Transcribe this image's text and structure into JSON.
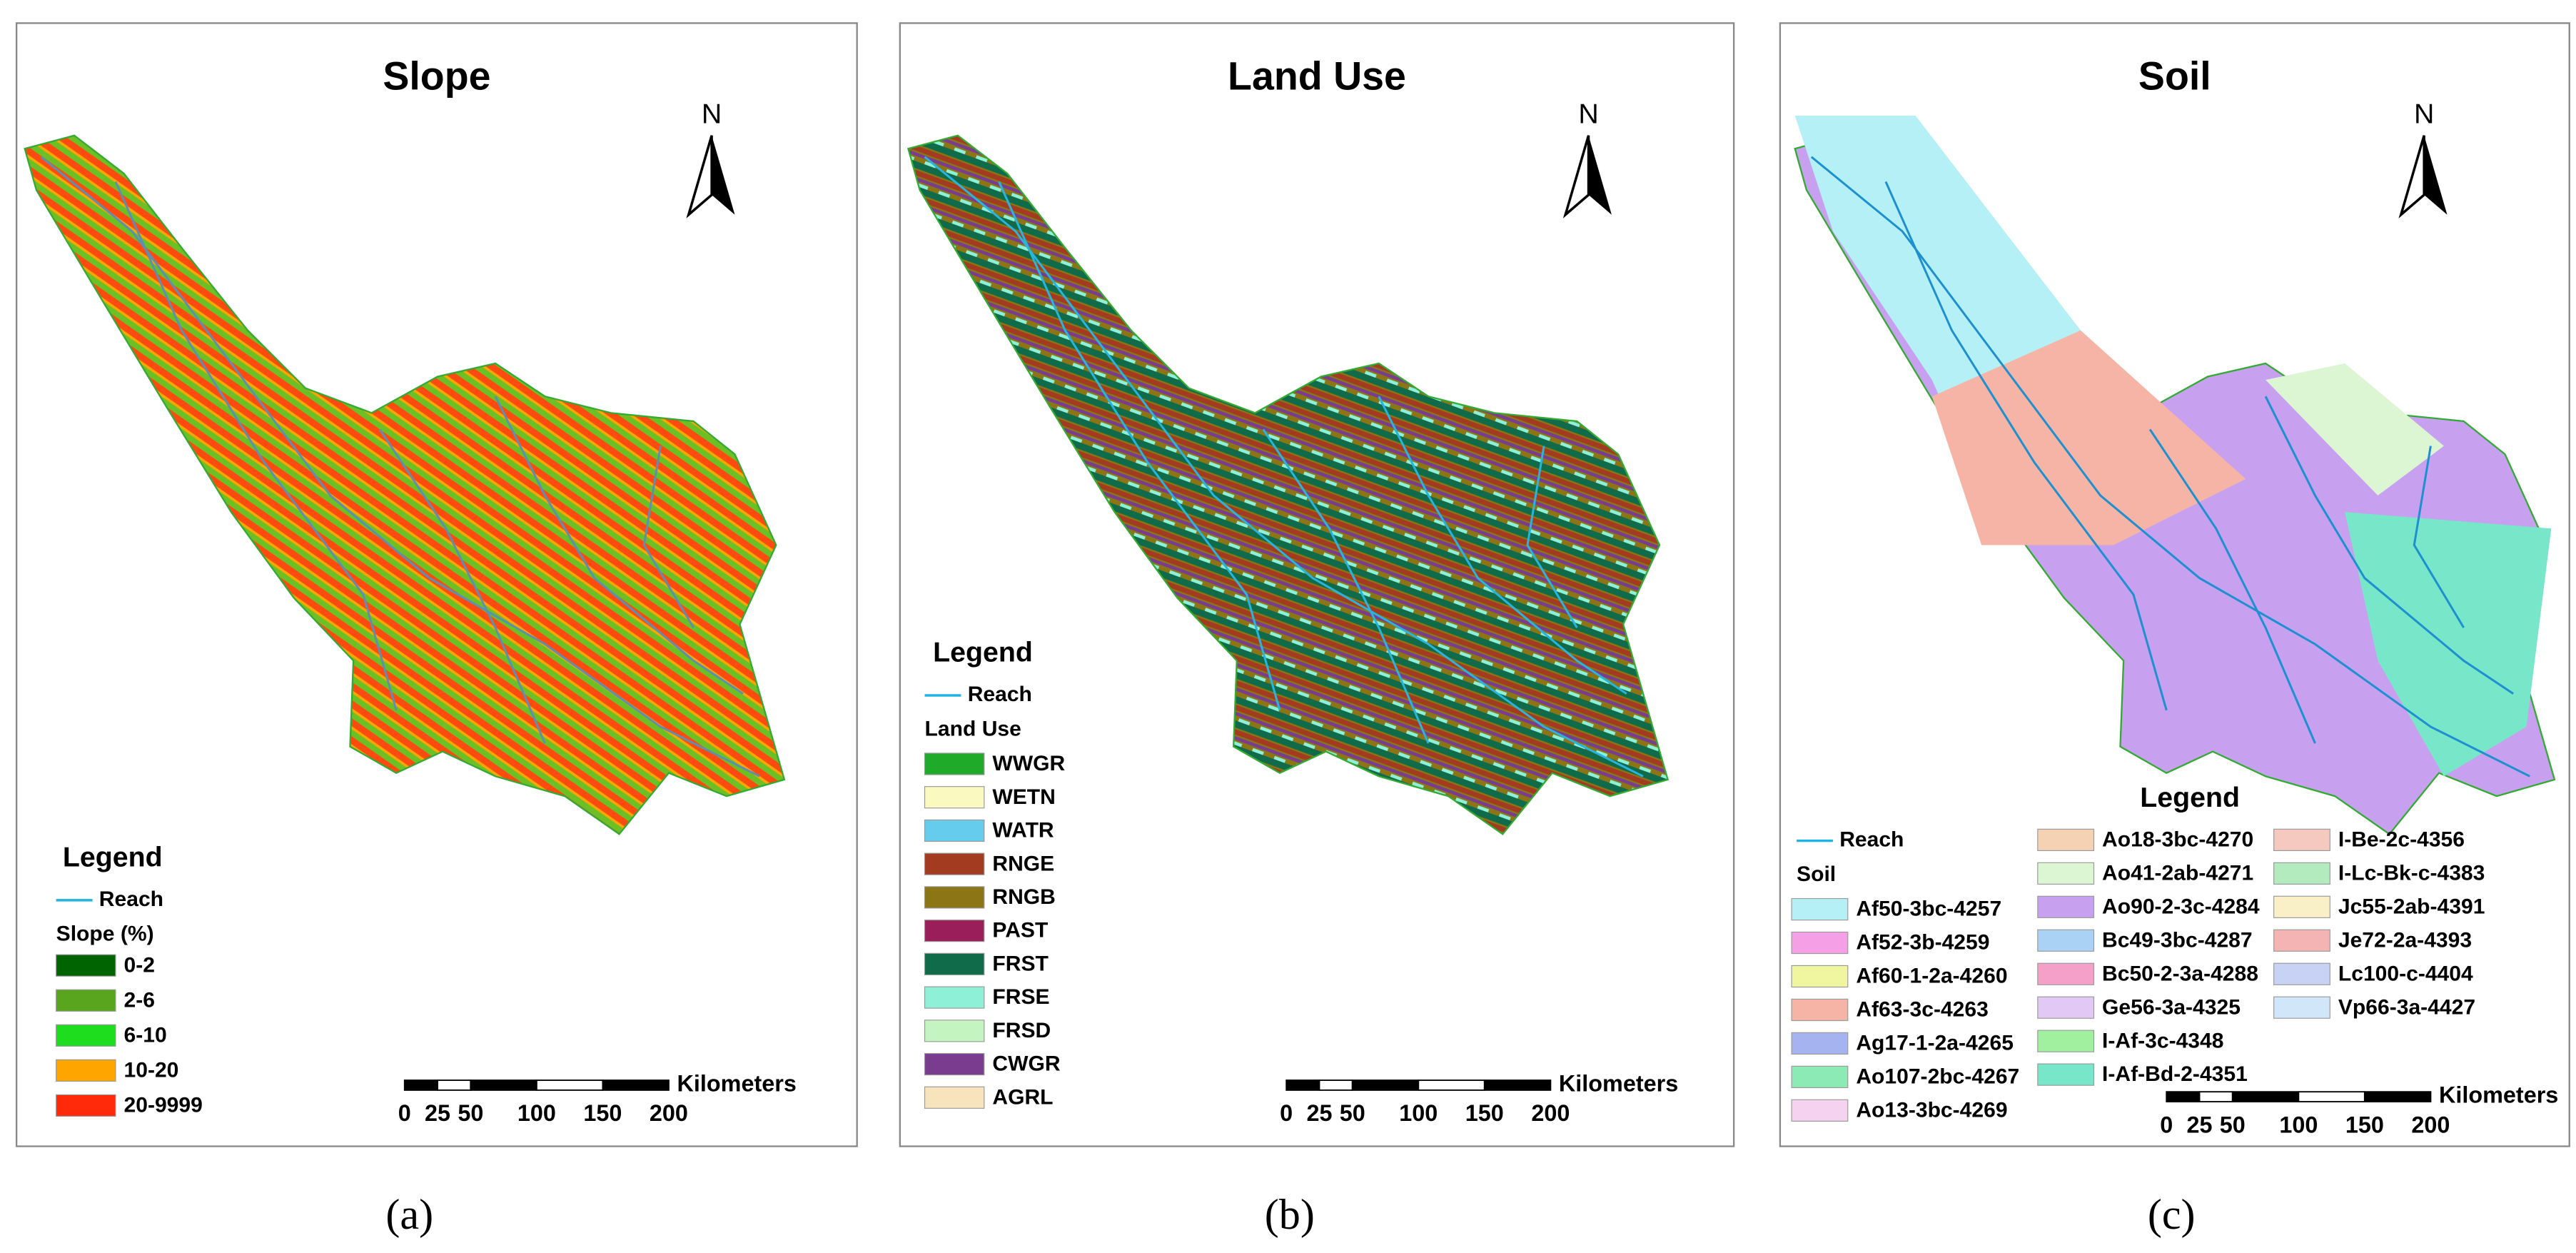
{
  "panels": [
    {
      "title": "Slope",
      "north": "N",
      "legend": {
        "title": "Legend",
        "reach": "Reach",
        "group_title": "Slope (%)",
        "items": [
          {
            "label": "0-2",
            "color": "#006400"
          },
          {
            "label": "2-6",
            "color": "#5aa51e"
          },
          {
            "label": "6-10",
            "color": "#1edc1e"
          },
          {
            "label": "10-20",
            "color": "#ffa500"
          },
          {
            "label": "20-9999",
            "color": "#ff2a0a"
          }
        ]
      },
      "scale_bar": {
        "ticks": [
          0,
          25,
          50,
          100,
          150,
          200
        ],
        "unit": "Kilometers"
      },
      "caption": "(a)"
    },
    {
      "title": "Land Use",
      "north": "N",
      "legend": {
        "title": "Legend",
        "reach": "Reach",
        "group_title": "Land Use",
        "items": [
          {
            "label": "WWGR",
            "color": "#1faa2a"
          },
          {
            "label": "WETN",
            "color": "#fafac0"
          },
          {
            "label": "WATR",
            "color": "#66ccee"
          },
          {
            "label": "RNGE",
            "color": "#a23b1f"
          },
          {
            "label": "RNGB",
            "color": "#8b7514"
          },
          {
            "label": "PAST",
            "color": "#9a1e5a"
          },
          {
            "label": "FRST",
            "color": "#0f6b4a"
          },
          {
            "label": "FRSE",
            "color": "#8ff0d8"
          },
          {
            "label": "FRSD",
            "color": "#c4f5c0"
          },
          {
            "label": "CWGR",
            "color": "#7a3c8f"
          },
          {
            "label": "AGRL",
            "color": "#f7e3bc"
          }
        ]
      },
      "scale_bar": {
        "ticks": [
          0,
          25,
          50,
          100,
          150,
          200
        ],
        "unit": "Kilometers"
      },
      "caption": "(b)"
    },
    {
      "title": "Soil",
      "north": "N",
      "legend": {
        "title": "Legend",
        "reach": "Reach",
        "group_title": "Soil",
        "items": [
          {
            "label": "Af50-3bc-4257",
            "color": "#b4f0f5"
          },
          {
            "label": "Af52-3b-4259",
            "color": "#f5a0e6"
          },
          {
            "label": "Af60-1-2a-4260",
            "color": "#f0f5a0"
          },
          {
            "label": "Af63-3c-4263",
            "color": "#f5b4a5"
          },
          {
            "label": "Ag17-1-2a-4265",
            "color": "#a5b4f0"
          },
          {
            "label": "Ao107-2bc-4267",
            "color": "#8cebb4"
          },
          {
            "label": "Ao13-3bc-4269",
            "color": "#f5d2f0"
          },
          {
            "label": "Ao18-3bc-4270",
            "color": "#f5d2b4"
          },
          {
            "label": "Ao41-2ab-4271",
            "color": "#dcf5d2"
          },
          {
            "label": "Ao90-2-3c-4284",
            "color": "#c8a0f0"
          },
          {
            "label": "Bc49-3bc-4287",
            "color": "#aad2f5"
          },
          {
            "label": "Bc50-2-3a-4288",
            "color": "#f5a0c8"
          },
          {
            "label": "Ge56-3a-4325",
            "color": "#e1c8f5"
          },
          {
            "label": "I-Af-3c-4348",
            "color": "#a0f0a0"
          },
          {
            "label": "I-Af-Bd-2-4351",
            "color": "#78e6c8"
          },
          {
            "label": "I-Be-2c-4356",
            "color": "#f5c8c0"
          },
          {
            "label": "I-Lc-Bk-c-4383",
            "color": "#b4ebbe"
          },
          {
            "label": "Jc55-2ab-4391",
            "color": "#faf0c8"
          },
          {
            "label": "Je72-2a-4393",
            "color": "#f5b4b4"
          },
          {
            "label": "Lc100-c-4404",
            "color": "#c8d2f5"
          },
          {
            "label": "Vp66-3a-4427",
            "color": "#d2e6fa"
          }
        ]
      },
      "scale_bar": {
        "ticks": [
          0,
          25,
          50,
          100,
          150,
          200
        ],
        "unit": "Kilometers"
      },
      "caption": "(c)"
    }
  ]
}
